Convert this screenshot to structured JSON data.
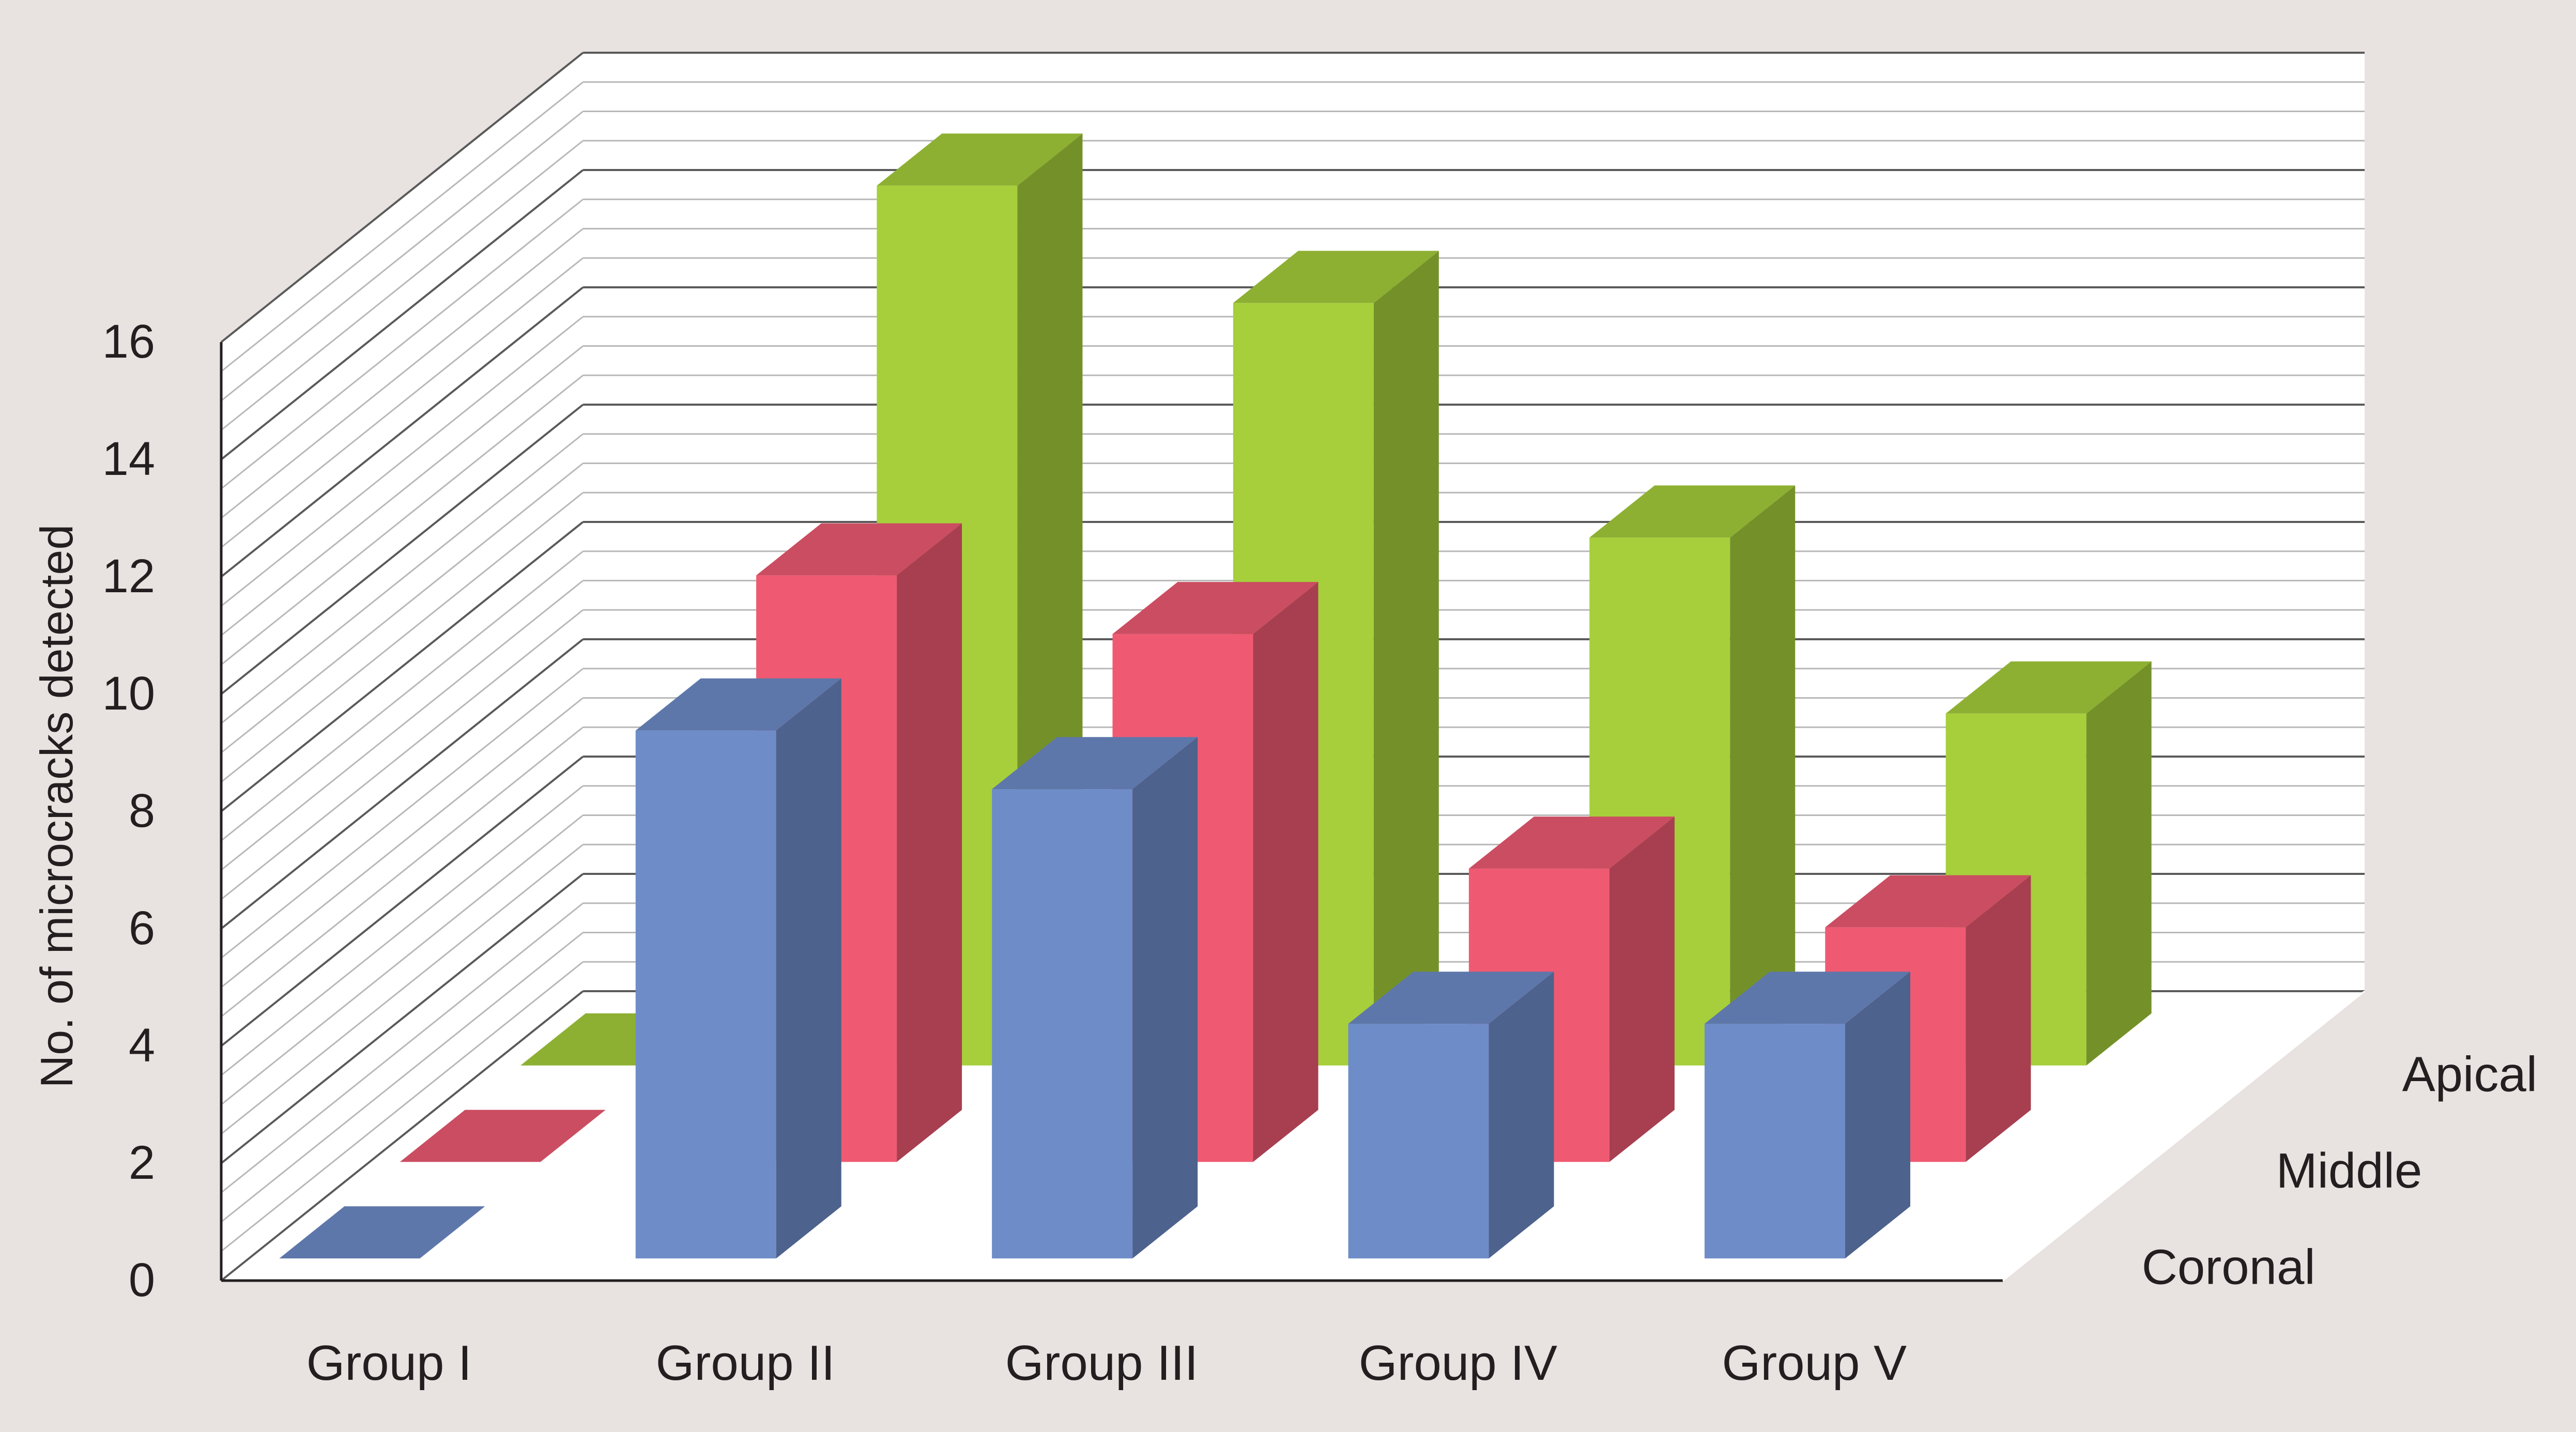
{
  "chart_data": {
    "type": "bar",
    "subtype": "3d-grouped-depth",
    "ylabel": "No. of microcracks detected",
    "ylim": [
      0,
      16
    ],
    "y_ticks": [
      0,
      2,
      4,
      6,
      8,
      10,
      12,
      14,
      16
    ],
    "grid": true,
    "categories": [
      "Group I",
      "Group II",
      "Group III",
      "Group IV",
      "Group V"
    ],
    "series": [
      {
        "name": "Coronal",
        "values": [
          0,
          9,
          8,
          4,
          4
        ],
        "color": "#6e8cc8"
      },
      {
        "name": "Middle",
        "values": [
          0,
          10,
          9,
          5,
          4
        ],
        "color": "#ef5a72"
      },
      {
        "name": "Apical",
        "values": [
          0,
          15,
          13,
          9,
          6
        ],
        "color": "#a6cf3b"
      }
    ],
    "background_color": "#e8e3e0"
  }
}
